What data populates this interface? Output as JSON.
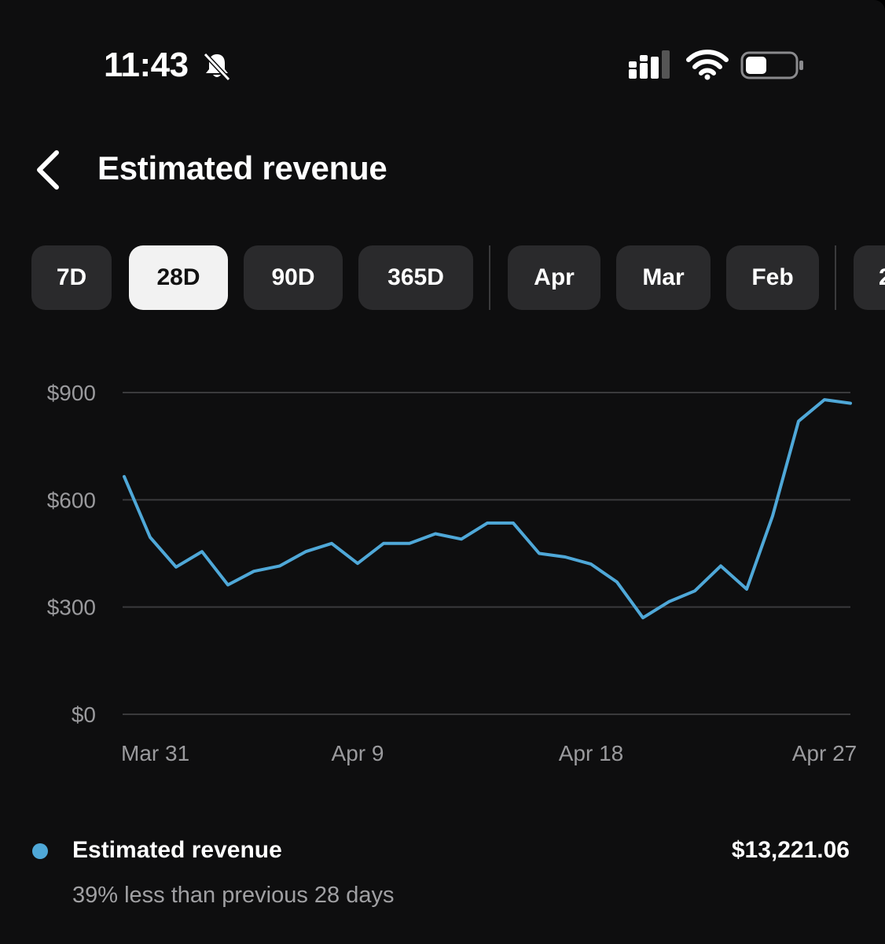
{
  "status_bar": {
    "time": "11:43"
  },
  "header": {
    "title": "Estimated revenue"
  },
  "tabs": [
    {
      "label": "7D",
      "active": false
    },
    {
      "label": "28D",
      "active": true
    },
    {
      "label": "90D",
      "active": false
    },
    {
      "label": "365D",
      "active": false
    },
    {
      "label": "Apr",
      "active": false
    },
    {
      "label": "Mar",
      "active": false
    },
    {
      "label": "Feb",
      "active": false
    },
    {
      "label": "2",
      "active": false
    }
  ],
  "chart_data": {
    "type": "line",
    "x": [
      "Mar 31",
      "Apr 1",
      "Apr 2",
      "Apr 3",
      "Apr 4",
      "Apr 5",
      "Apr 6",
      "Apr 7",
      "Apr 8",
      "Apr 9",
      "Apr 10",
      "Apr 11",
      "Apr 12",
      "Apr 13",
      "Apr 14",
      "Apr 15",
      "Apr 16",
      "Apr 17",
      "Apr 18",
      "Apr 19",
      "Apr 20",
      "Apr 21",
      "Apr 22",
      "Apr 23",
      "Apr 24",
      "Apr 25",
      "Apr 26",
      "Apr 27",
      "Apr 28"
    ],
    "series": [
      {
        "values": [
          665,
          495,
          412,
          455,
          362,
          400,
          415,
          455,
          478,
          422,
          478,
          478,
          505,
          490,
          535,
          535,
          450,
          440,
          420,
          370,
          270,
          315,
          345,
          415,
          350,
          555,
          820,
          880,
          870
        ]
      }
    ],
    "y_ticks": [
      "$0",
      "$300",
      "$600",
      "$900"
    ],
    "y_tick_values": [
      0,
      300,
      600,
      900
    ],
    "x_tick_labels": [
      "Mar 31",
      "Apr 9",
      "Apr 18",
      "Apr 27"
    ],
    "ylim": [
      0,
      900
    ],
    "grid": true,
    "line_color": "#4fa8d8"
  },
  "legend": {
    "label": "Estimated revenue",
    "value": "$13,221.06",
    "comparison": "39% less than previous 28 days",
    "dot_color": "#4fa8d8"
  }
}
